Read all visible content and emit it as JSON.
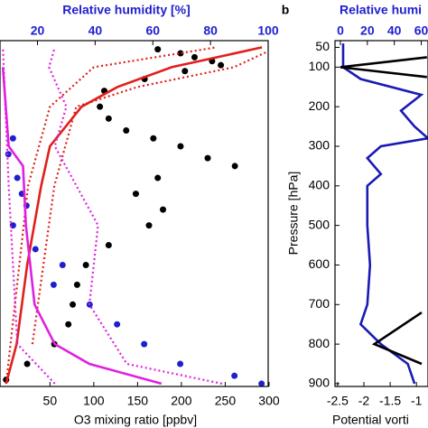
{
  "chart_data": [
    {
      "type": "line",
      "xlabel": "O3 mixing ratio [ppbv]",
      "x2label": "Relative humidity [%]",
      "xlim": [
        -7,
        299
      ],
      "xticks": [
        50,
        100,
        150,
        200,
        250,
        300
      ],
      "x2lim": [
        7,
        100
      ],
      "x2ticks": [
        20,
        40,
        60,
        80,
        100
      ],
      "ylim": [
        33,
        907
      ],
      "yreverse": true,
      "series": [
        {
          "mode": "markers",
          "color": "#000000",
          "values": [
            173,
            199,
            215,
            235,
            245,
            204,
            158,
            112,
            107,
            117,
            137,
            168,
            199,
            230,
            261,
            173,
            148,
            179,
            163,
            117,
            91,
            81,
            76,
            71,
            55,
            24,
            0
          ],
          "pressure": [
            55,
            65,
            75,
            85,
            95,
            110,
            130,
            160,
            200,
            230,
            260,
            280,
            300,
            330,
            350,
            380,
            420,
            460,
            500,
            550,
            600,
            650,
            700,
            750,
            800,
            850,
            890
          ]
        },
        {
          "mode": "markers",
          "color": "#1f1fd0",
          "axis": "x2",
          "values": [
            11.5,
            9.9,
            13,
            14.6,
            16.2,
            11.5,
            19.3,
            28.7,
            25.6,
            38.1,
            47.6,
            57,
            69.5,
            88.3,
            97.7
          ],
          "pressure": [
            280,
            320,
            380,
            420,
            450,
            500,
            560,
            600,
            650,
            700,
            750,
            800,
            850,
            880,
            900
          ]
        },
        {
          "mode": "line",
          "color": "#e0201b",
          "values": [
            0,
            12,
            24,
            40,
            50,
            86,
            127,
            189,
            292
          ],
          "pressure": [
            900,
            800,
            600,
            400,
            300,
            200,
            150,
            100,
            50
          ]
        },
        {
          "mode": "line",
          "color": "#e0201b",
          "dash": true,
          "values": [
            0,
            25,
            50,
            100,
            240
          ],
          "pressure": [
            900,
            400,
            200,
            100,
            50
          ]
        },
        {
          "mode": "line",
          "color": "#e0201b",
          "dash": true,
          "values": [
            30,
            55,
            80,
            150,
            260,
            299
          ],
          "pressure": [
            800,
            400,
            200,
            150,
            100,
            60
          ]
        },
        {
          "mode": "line",
          "color": "#e020e0",
          "axis": "x2",
          "values": [
            63,
            38,
            26,
            19,
            16,
            15,
            10,
            8
          ],
          "pressure": [
            900,
            850,
            800,
            700,
            500,
            350,
            300,
            100
          ]
        },
        {
          "mode": "line",
          "color": "#e020e0",
          "axis": "x2",
          "dash": true,
          "values": [
            26,
            13,
            10,
            8
          ],
          "pressure": [
            900,
            800,
            400,
            50
          ]
        },
        {
          "mode": "line",
          "color": "#e020e0",
          "axis": "x2",
          "dash": true,
          "values": [
            84,
            51,
            38,
            41,
            26,
            30,
            24,
            26
          ],
          "pressure": [
            900,
            850,
            700,
            500,
            300,
            200,
            100,
            50
          ]
        }
      ]
    },
    {
      "type": "line",
      "panel_label": "b",
      "xlabel": "Potential vorti",
      "x2label": "Relative humi",
      "ylabel": "Pressure [hPa]",
      "xlim": [
        -2.55,
        -0.78
      ],
      "xticks": [
        -2.5,
        -2,
        -1.5,
        -1
      ],
      "x2lim": [
        -4,
        65
      ],
      "x2ticks": [
        0,
        20,
        40,
        60
      ],
      "ylim": [
        33,
        907
      ],
      "yreverse": true,
      "yticks": [
        50,
        100,
        200,
        300,
        400,
        500,
        600,
        700,
        800,
        900
      ],
      "series": [
        {
          "mode": "line",
          "color": "#1a1ab4",
          "axis": "x2",
          "values": [
            2,
            2,
            15,
            60,
            45,
            55,
            65,
            30,
            20,
            30,
            20,
            20,
            22,
            20,
            15,
            30,
            50,
            55
          ],
          "pressure": [
            40,
            100,
            130,
            170,
            210,
            250,
            280,
            300,
            330,
            370,
            400,
            500,
            600,
            700,
            750,
            800,
            850,
            900
          ]
        },
        {
          "mode": "line",
          "color": "#000000",
          "values": [
            -0.8,
            -2.45,
            -0.8
          ],
          "pressure": [
            75,
            100,
            125
          ]
        },
        {
          "mode": "line",
          "color": "#000000",
          "values": [
            -0.9,
            -1.8,
            -0.9
          ],
          "pressure": [
            720,
            800,
            850
          ]
        }
      ]
    }
  ]
}
